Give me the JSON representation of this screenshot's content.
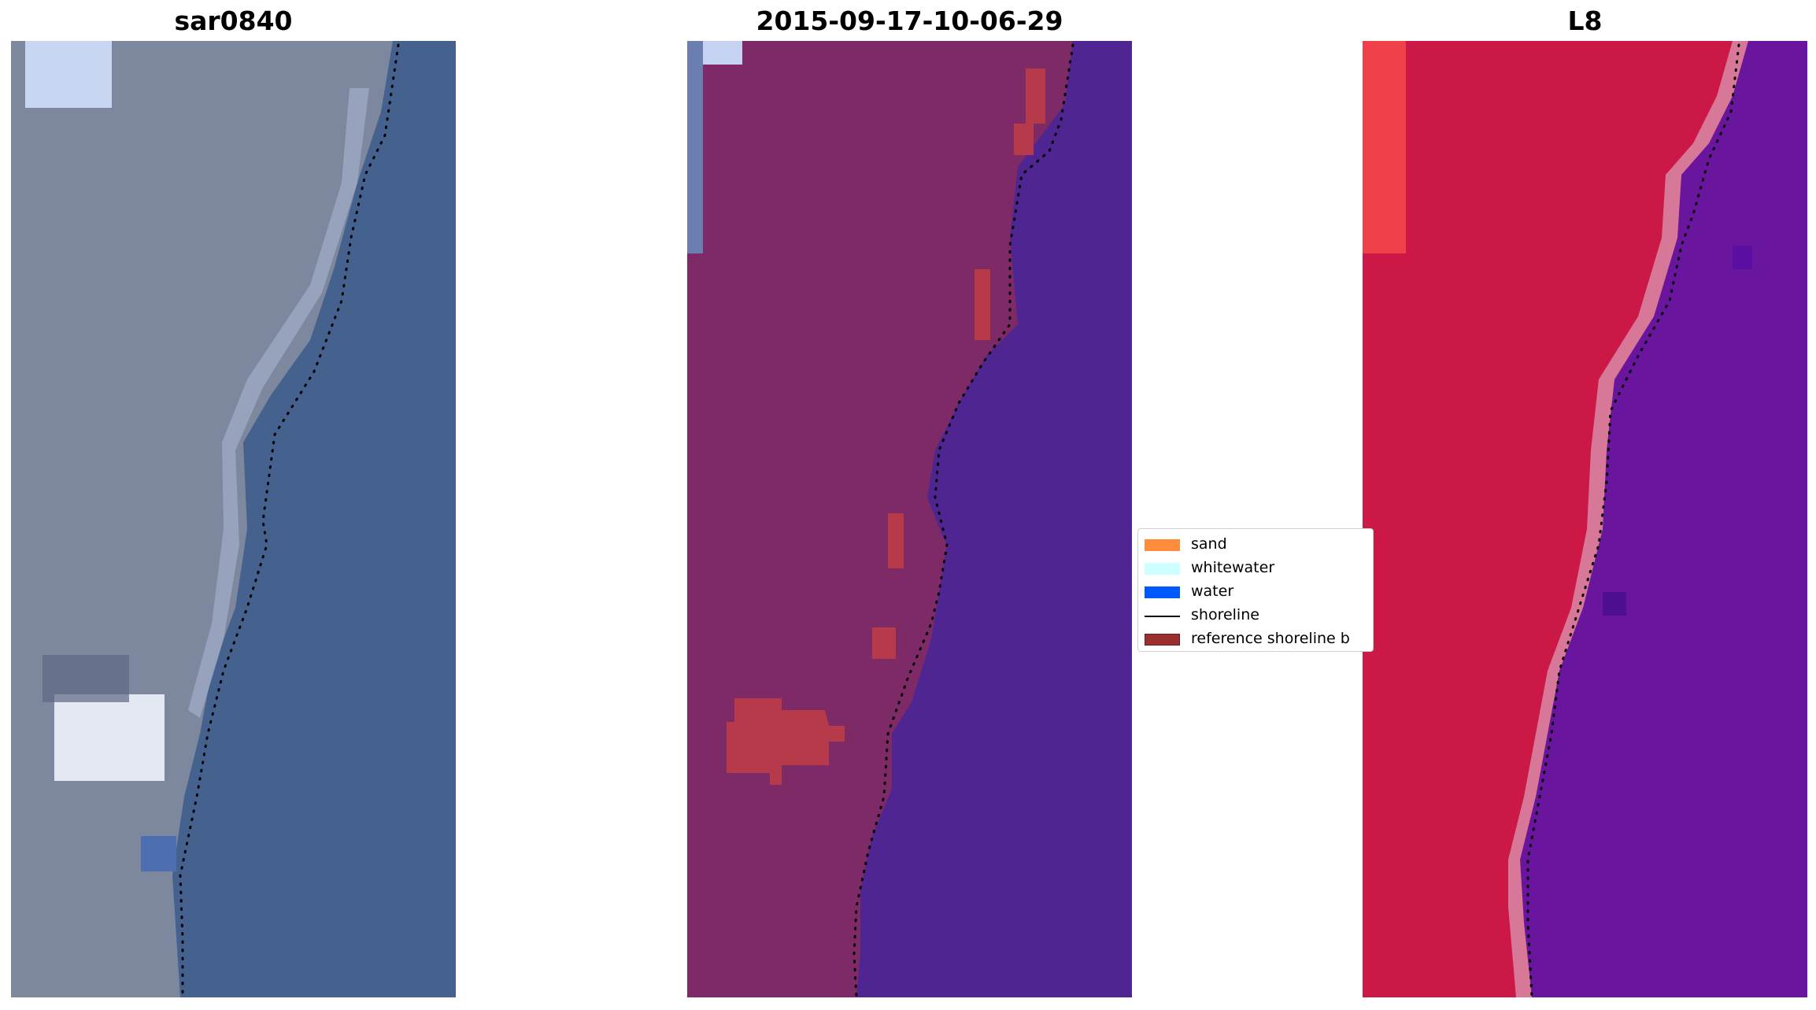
{
  "panels": [
    {
      "title": "sar0840"
    },
    {
      "title": "2015-09-17-10-06-29"
    },
    {
      "title": "L8"
    }
  ],
  "legend": {
    "items": [
      {
        "label": "sand",
        "type": "patch",
        "color": "#ff8c3a"
      },
      {
        "label": "whitewater",
        "type": "patch",
        "color": "#ccffff"
      },
      {
        "label": "water",
        "type": "patch",
        "color": "#0059ff"
      },
      {
        "label": "shoreline",
        "type": "line",
        "color": "#000000"
      },
      {
        "label": "reference shoreline b",
        "type": "patch",
        "color": "#9a2f2f"
      }
    ]
  },
  "colors": {
    "panel1_land": "#7d879e",
    "panel1_water": "#45628f",
    "panel2_land": "#7e2a67",
    "panel2_water": "#4f2591",
    "panel2_buffer": "#b63a4a",
    "panel3_land": "#cc1847",
    "panel3_water": "#6a159e",
    "panel3_edge": "#d88aa8"
  }
}
